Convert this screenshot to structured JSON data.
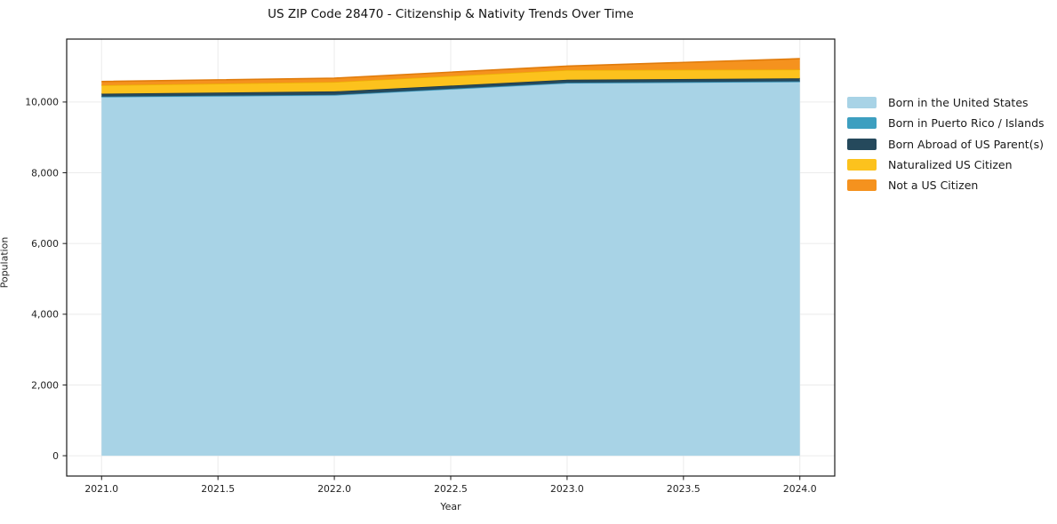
{
  "chart_data": {
    "type": "area",
    "title": "US ZIP Code 28470 - Citizenship & Nativity Trends Over Time",
    "xlabel": "Year",
    "ylabel": "Population",
    "x": [
      2021,
      2022,
      2023,
      2024
    ],
    "series": [
      {
        "name": "Born in the United States",
        "color": "#a8d3e6",
        "line": "#8fc6dc",
        "values": [
          10140,
          10190,
          10535,
          10570
        ]
      },
      {
        "name": "Born in Puerto Rico / Islands",
        "color": "#3d9fc0",
        "line": "#338bb0",
        "values": [
          15,
          15,
          10,
          15
        ]
      },
      {
        "name": "Born Abroad of US Parent(s)",
        "color": "#25495c",
        "line": "#1d3a4a",
        "values": [
          80,
          95,
          85,
          85
        ]
      },
      {
        "name": "Naturalized US Citizen",
        "color": "#fcc21d",
        "line": "#edb004",
        "values": [
          240,
          265,
          275,
          250
        ]
      },
      {
        "name": "Not a US Citizen",
        "color": "#f5921e",
        "line": "#e07b0b",
        "values": [
          105,
          110,
          110,
          305
        ]
      }
    ],
    "stacked": true,
    "xlim": [
      2020.85,
      2024.15
    ],
    "ylim": [
      -575,
      11780
    ],
    "xticks": [
      {
        "v": 2021.0,
        "label": "2021.0"
      },
      {
        "v": 2021.5,
        "label": "2021.5"
      },
      {
        "v": 2022.0,
        "label": "2022.0"
      },
      {
        "v": 2022.5,
        "label": "2022.5"
      },
      {
        "v": 2023.0,
        "label": "2023.0"
      },
      {
        "v": 2023.5,
        "label": "2023.5"
      },
      {
        "v": 2024.0,
        "label": "2024.0"
      }
    ],
    "yticks": [
      {
        "v": 0,
        "label": "0"
      },
      {
        "v": 2000,
        "label": "2,000"
      },
      {
        "v": 4000,
        "label": "4,000"
      },
      {
        "v": 6000,
        "label": "6,000"
      },
      {
        "v": 8000,
        "label": "8,000"
      },
      {
        "v": 10000,
        "label": "10,000"
      }
    ],
    "grid": true,
    "grid_color": "#ebebeb",
    "legend_position": "right-outside",
    "spine_color": "#1a1a1a",
    "tick_label_color": "#222222"
  }
}
